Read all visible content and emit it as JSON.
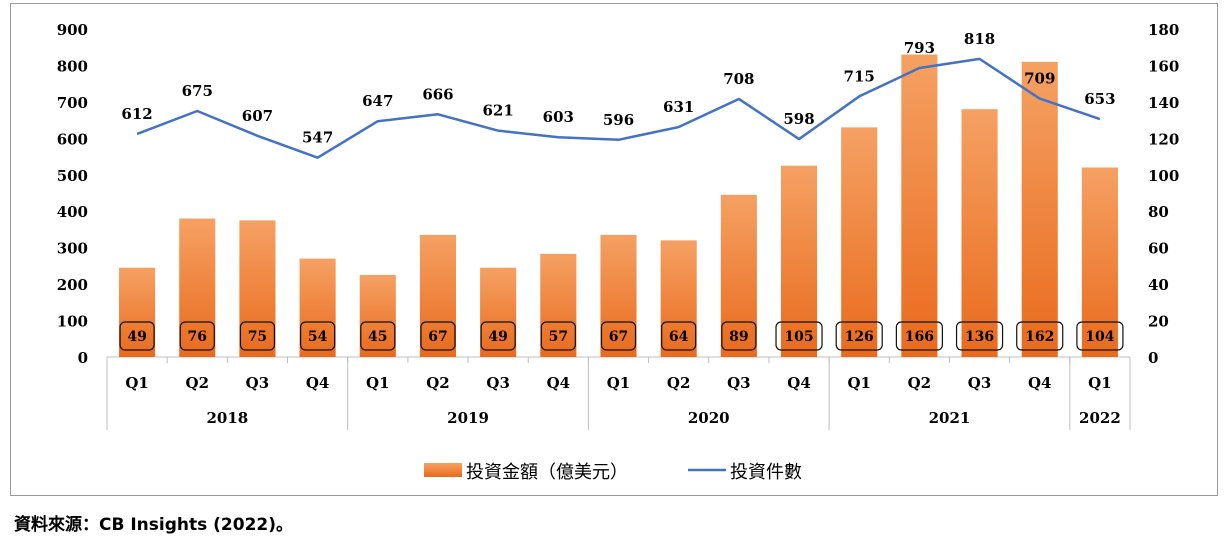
{
  "chart_data": {
    "type": "bar",
    "categories": [
      "Q1",
      "Q2",
      "Q3",
      "Q4",
      "Q1",
      "Q2",
      "Q3",
      "Q4",
      "Q1",
      "Q2",
      "Q3",
      "Q4",
      "Q1",
      "Q2",
      "Q3",
      "Q4",
      "Q1"
    ],
    "year_groups": [
      {
        "label": "2018",
        "count": 4
      },
      {
        "label": "2019",
        "count": 4
      },
      {
        "label": "2020",
        "count": 4
      },
      {
        "label": "2021",
        "count": 4
      },
      {
        "label": "2022",
        "count": 1
      }
    ],
    "series": [
      {
        "name": "投資金額（億美元）",
        "type": "bar",
        "axis": "left",
        "color": "#ee7024",
        "values": [
          245,
          380,
          375,
          270,
          225,
          335,
          245,
          283,
          335,
          320,
          445,
          525,
          630,
          830,
          680,
          810,
          520
        ],
        "data_labels": [
          49,
          76,
          75,
          54,
          45,
          67,
          49,
          57,
          67,
          64,
          89,
          105,
          126,
          166,
          136,
          162,
          104
        ]
      },
      {
        "name": "投資件數",
        "type": "line",
        "axis": "right",
        "color": "#4472c4",
        "values": [
          122.4,
          135,
          121.4,
          109.4,
          129.4,
          133.2,
          124.2,
          120.6,
          119.2,
          126.2,
          141.6,
          119.6,
          143,
          158.6,
          163.6,
          141.8,
          130.6
        ],
        "data_labels": [
          612,
          675,
          607,
          547,
          647,
          666,
          621,
          603,
          596,
          631,
          708,
          598,
          715,
          793,
          818,
          709,
          653
        ]
      }
    ],
    "y_left": {
      "min": 0,
      "max": 900,
      "step": 100,
      "ticks": [
        "0",
        "100",
        "200",
        "300",
        "400",
        "500",
        "600",
        "700",
        "800",
        "900"
      ]
    },
    "y_right": {
      "min": 0,
      "max": 180,
      "step": 20,
      "ticks": [
        "0",
        "20",
        "40",
        "60",
        "80",
        "100",
        "120",
        "140",
        "160",
        "180"
      ]
    },
    "grid": false,
    "legend_position": "bottom",
    "title": "",
    "xlabel": "",
    "ylabel": ""
  },
  "legend": {
    "bar_label": "投資金額（億美元）",
    "line_label": "投資件數"
  },
  "source": "資料來源：CB Insights (2022)。"
}
